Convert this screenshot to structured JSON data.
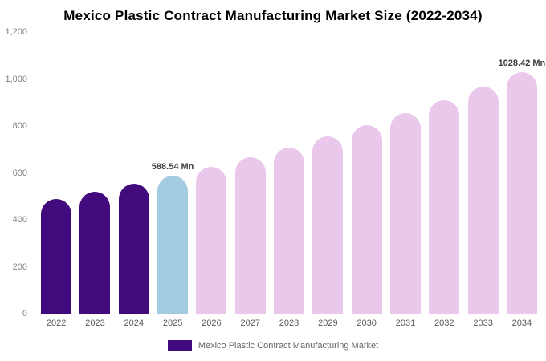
{
  "page": {
    "title": "Mexico Plastic Contract Manufacturing Market Size (2022-2034)"
  },
  "chart_data": {
    "type": "bar",
    "title": "Mexico Plastic Contract Manufacturing Market Size (2022-2034)",
    "categories": [
      "2022",
      "2023",
      "2024",
      "2025",
      "2026",
      "2027",
      "2028",
      "2029",
      "2030",
      "2031",
      "2032",
      "2033",
      "2034"
    ],
    "values": [
      489,
      520,
      553,
      588.54,
      626,
      666,
      709,
      754,
      803,
      854,
      909,
      967,
      1028.42
    ],
    "unit": "Mn",
    "ylim": [
      0,
      1200
    ],
    "ytick_interval": 200,
    "ytick_labels": [
      "0",
      "200",
      "400",
      "600",
      "800",
      "1,000",
      "1,200"
    ],
    "grid": false,
    "bar_colors": [
      "#430a7d",
      "#430a7d",
      "#430a7d",
      "#a3cbe2",
      "#e9c8ec",
      "#e9c8ec",
      "#e9c8ec",
      "#e9c8ec",
      "#e9c8ec",
      "#e9c8ec",
      "#e9c8ec",
      "#e9c8ec",
      "#e9c8ec"
    ],
    "annotations": [
      {
        "category": "2025",
        "text": "588.54 Mn"
      },
      {
        "category": "2034",
        "text": "1028.42 Mn"
      }
    ],
    "legend_position": "bottom",
    "legend": {
      "label": "Mexico Plastic Contract Manufacturing Market",
      "color": "#430a7d"
    }
  }
}
